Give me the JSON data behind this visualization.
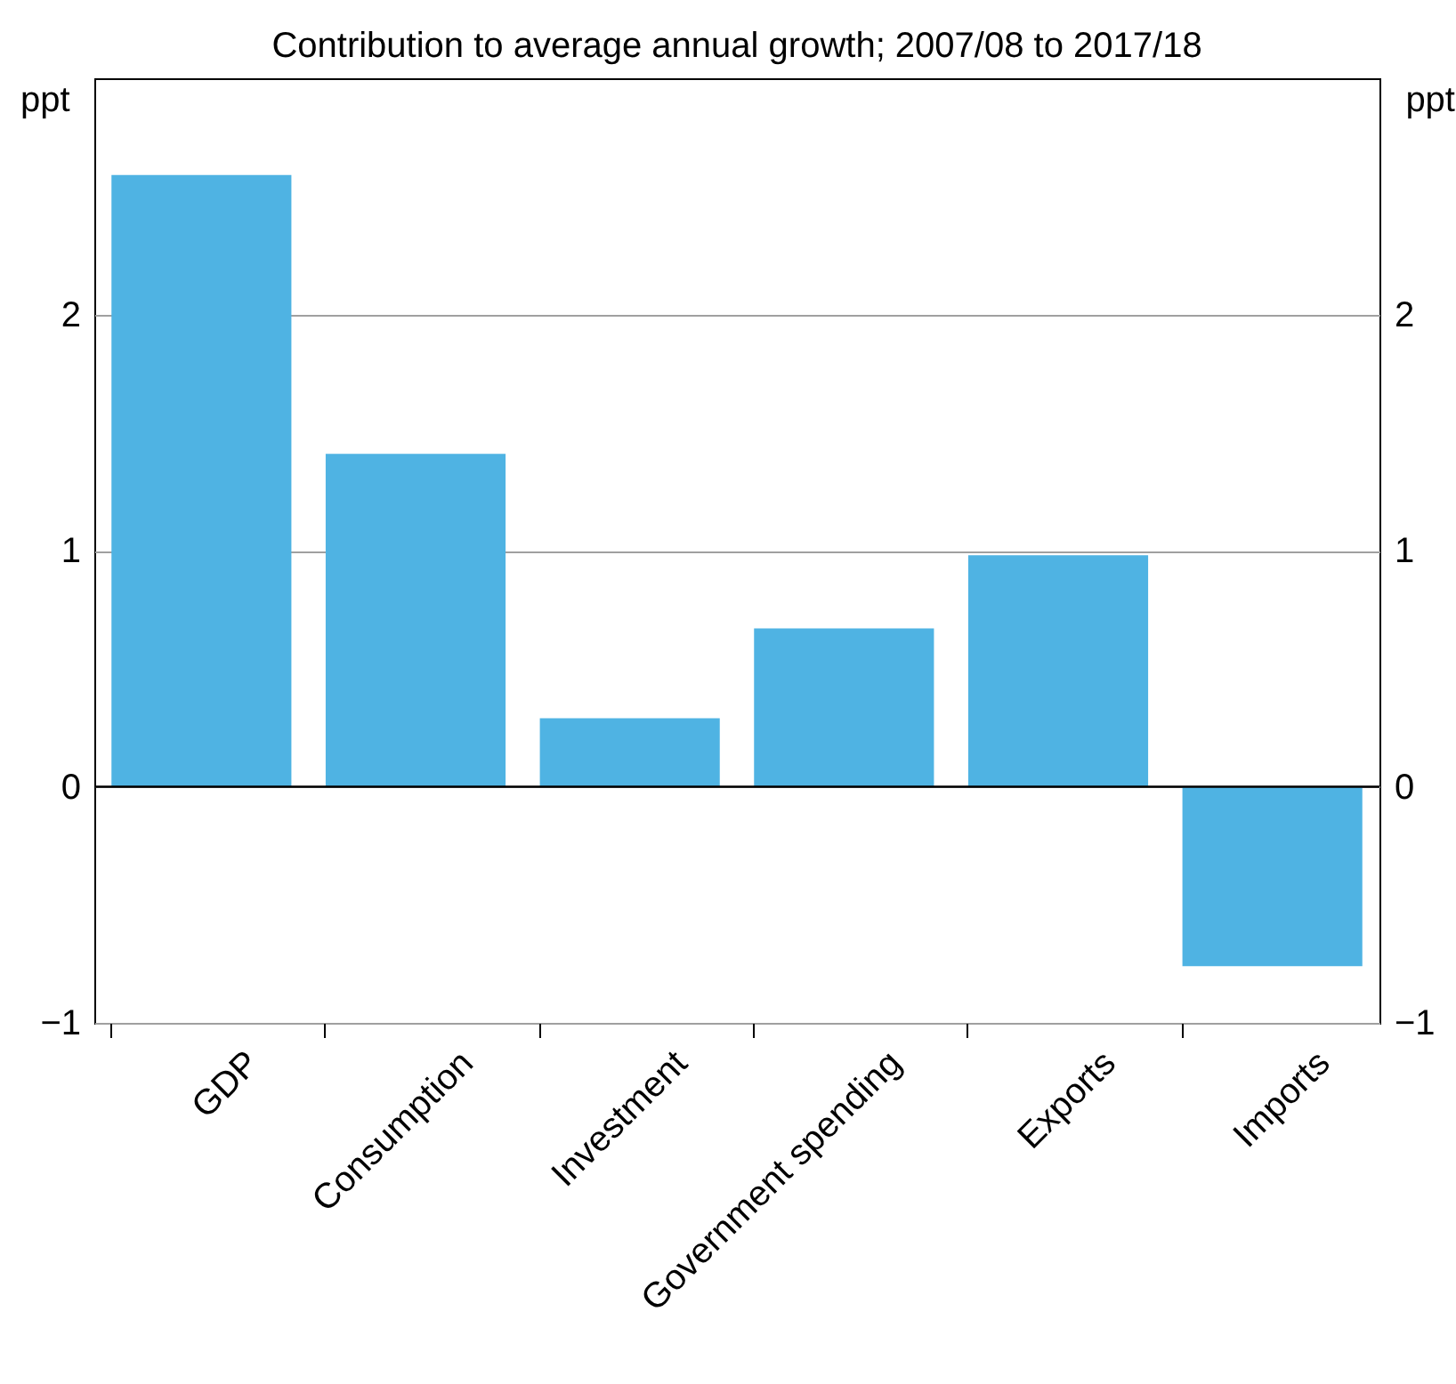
{
  "chart_data": {
    "type": "bar",
    "title": "Contribution to average annual growth; 2007/08 to 2017/18",
    "categories": [
      "GDP",
      "Consumption",
      "Investment",
      "Government spending",
      "Exports",
      "Imports"
    ],
    "values": [
      2.59,
      1.41,
      0.29,
      0.67,
      0.98,
      -0.76
    ],
    "color": "#4fb3e3",
    "ylabel": "ppt",
    "y2label": "ppt",
    "ylim": [
      -1,
      3
    ],
    "yticks": [
      -1,
      0,
      1,
      2
    ],
    "y2lim": [
      -1,
      3
    ],
    "y2ticks": [
      -1,
      0,
      1,
      2
    ],
    "grid": "y",
    "ref_lines": [
      {
        "axis": "y",
        "value": 0,
        "color": "#000000"
      }
    ]
  }
}
